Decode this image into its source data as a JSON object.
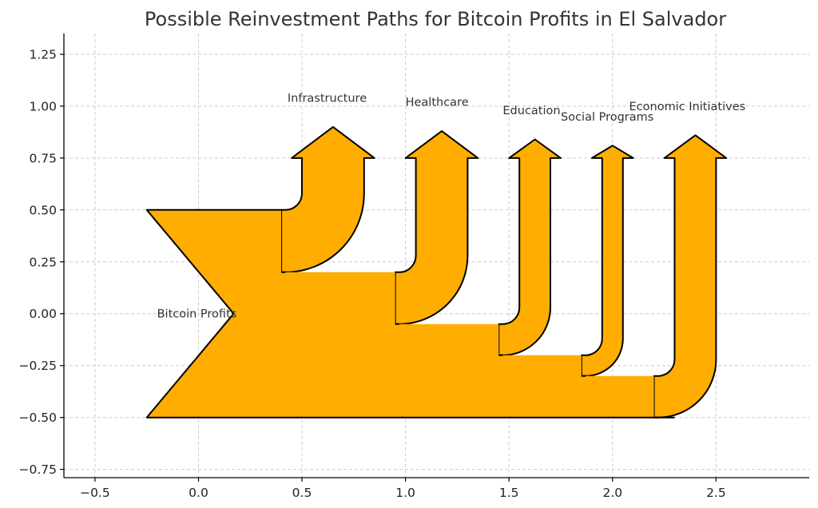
{
  "chart_data": {
    "type": "sankey",
    "title": "Possible Reinvestment Paths for Bitcoin Profits in El Salvador",
    "xlabel": "",
    "ylabel": "",
    "xlim": [
      -0.65,
      2.95
    ],
    "ylim": [
      -0.79,
      1.35
    ],
    "xticks": [
      -0.5,
      0.0,
      0.5,
      1.0,
      1.5,
      2.0,
      2.5
    ],
    "xtick_labels": [
      "−0.5",
      "0.0",
      "0.5",
      "1.0",
      "1.5",
      "2.0",
      "2.5"
    ],
    "yticks": [
      1.25,
      1.0,
      0.75,
      0.5,
      0.25,
      0.0,
      -0.25,
      -0.5,
      -0.75
    ],
    "ytick_labels": [
      "1.25",
      "1.00",
      "0.75",
      "0.50",
      "0.25",
      "0.00",
      "−0.25",
      "−0.50",
      "−0.75"
    ],
    "grid": true,
    "source": {
      "label": "Bitcoin Profits",
      "label_pos": [
        -0.2,
        0.0
      ],
      "top": 0.5,
      "bottom": -0.5,
      "left_x": -0.25,
      "notch_x": 0.17
    },
    "flows": [
      {
        "label": "Infrastructure",
        "value": 0.3,
        "top": 0.5,
        "bottom": 0.2,
        "left_x": 0.4,
        "corner_x": 0.5,
        "stem_bottom_y": 0.58,
        "arrow_base_y": 0.75,
        "arrow_tip_y": 0.9,
        "label_pos": [
          0.43,
          1.04
        ]
      },
      {
        "label": "Healthcare",
        "value": 0.25,
        "top": 0.2,
        "bottom": -0.05,
        "left_x": 0.95,
        "corner_x": 1.05,
        "stem_bottom_y": 0.28,
        "arrow_base_y": 0.75,
        "arrow_tip_y": 0.88,
        "label_pos": [
          1.0,
          1.02
        ]
      },
      {
        "label": "Education",
        "value": 0.15,
        "top": -0.05,
        "bottom": -0.2,
        "left_x": 1.45,
        "corner_x": 1.55,
        "stem_bottom_y": 0.03,
        "arrow_base_y": 0.75,
        "arrow_tip_y": 0.84,
        "label_pos": [
          1.47,
          0.98
        ]
      },
      {
        "label": "Social Programs",
        "value": 0.1,
        "top": -0.2,
        "bottom": -0.3,
        "left_x": 1.85,
        "corner_x": 1.95,
        "stem_bottom_y": -0.12,
        "arrow_base_y": 0.75,
        "arrow_tip_y": 0.81,
        "label_pos": [
          1.75,
          0.95
        ]
      },
      {
        "label": "Economic Initiatives",
        "value": 0.2,
        "top": -0.3,
        "bottom": -0.5,
        "left_x": 2.2,
        "corner_x": 2.3,
        "stem_bottom_y": -0.22,
        "arrow_base_y": 0.75,
        "arrow_tip_y": 0.86,
        "label_pos": [
          2.08,
          1.0
        ]
      }
    ],
    "colors": {
      "flow_fill": "#ffad00",
      "flow_edge": "#000000",
      "grid": "#cccccc"
    }
  }
}
